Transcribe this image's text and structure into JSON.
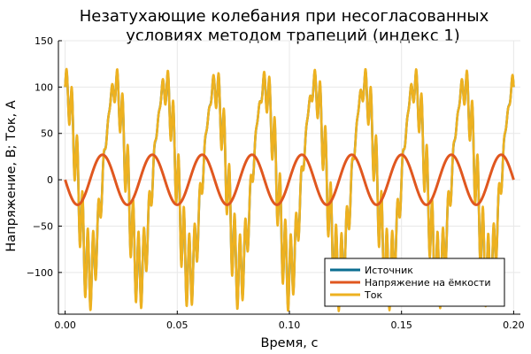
{
  "chart_data": {
    "type": "line",
    "title_lines": [
      "Незатухающие колебания при несогласованных",
      "условиях методом трапеций (индекс 1)"
    ],
    "xlabel": "Время, с",
    "ylabel": "Напряжение, В; Ток, А",
    "xlim": [
      -0.003,
      0.203
    ],
    "ylim": [
      -145,
      150
    ],
    "xticks": [
      0.0,
      0.05,
      0.1,
      0.15,
      0.2
    ],
    "xtick_labels": [
      "0.00",
      "0.05",
      "0.10",
      "0.15",
      "0.20"
    ],
    "yticks": [
      -100,
      -50,
      0,
      50,
      100,
      150
    ],
    "ytick_labels": [
      "−100",
      "−50",
      "0",
      "50",
      "100",
      "150"
    ],
    "grid": true,
    "legend_position": "bottom-right",
    "series": [
      {
        "name": "Источник",
        "color": "#0b6e91",
        "description_kind": "sinusoid_plus_highfreq",
        "fundamental_frequency_hz": 45,
        "amplitude": 100,
        "highfreq_amplitude": 40,
        "highfreq_frequency_hz": 420,
        "x_start": 0.0,
        "x_end": 0.2
      },
      {
        "name": "Напряжение на ёмкости",
        "color": "#e0571f",
        "description_kind": "sinusoid",
        "frequency_hz": 45,
        "amplitude": 27,
        "x_start": 0.0,
        "x_end": 0.2
      },
      {
        "name": "Ток",
        "color": "#edb120",
        "description_kind": "sinusoid_plus_highfreq",
        "fundamental_frequency_hz": 45,
        "amplitude": 100,
        "highfreq_amplitude": 45,
        "highfreq_frequency_hz": 420,
        "x_start": 0.0,
        "x_end": 0.2
      }
    ]
  }
}
